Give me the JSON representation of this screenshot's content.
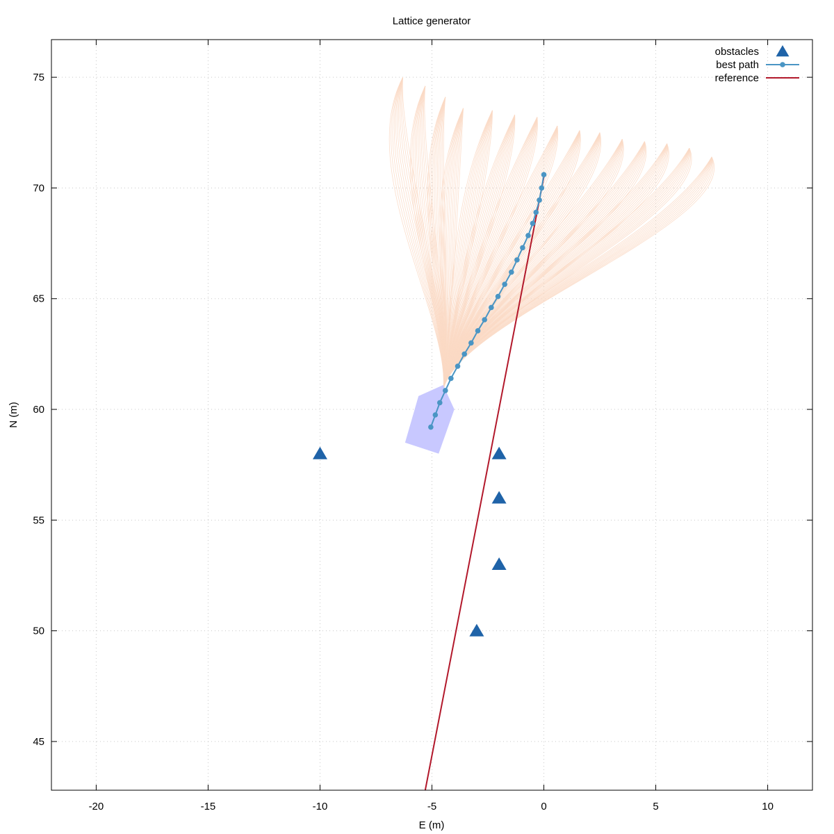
{
  "chart_data": {
    "type": "scatter",
    "title": "Lattice generator",
    "xlabel": "E (m)",
    "ylabel": "N (m)",
    "xlim": [
      -22,
      12
    ],
    "ylim": [
      42.8,
      76.7
    ],
    "x_ticks": [
      -20,
      -15,
      -10,
      -5,
      0,
      5,
      10
    ],
    "y_ticks": [
      45,
      50,
      55,
      60,
      65,
      70,
      75
    ],
    "grid": true,
    "legend_position": "top-right",
    "legend": [
      "obstacles",
      "best path",
      "reference"
    ],
    "series": [
      {
        "name": "obstacles",
        "marker": "triangle",
        "color": "#1f63a8",
        "points": [
          [
            -10,
            58
          ],
          [
            -2,
            58
          ],
          [
            -2,
            56
          ],
          [
            -2,
            53
          ],
          [
            -3,
            50
          ]
        ]
      },
      {
        "name": "best path",
        "marker": "circle",
        "color": "#4a95c4",
        "points": [
          [
            -5.05,
            59.2
          ],
          [
            -4.85,
            59.75
          ],
          [
            -4.65,
            60.3
          ],
          [
            -4.4,
            60.85
          ],
          [
            -4.15,
            61.4
          ],
          [
            -3.85,
            61.95
          ],
          [
            -3.55,
            62.5
          ],
          [
            -3.25,
            63.0
          ],
          [
            -2.95,
            63.55
          ],
          [
            -2.65,
            64.05
          ],
          [
            -2.35,
            64.6
          ],
          [
            -2.05,
            65.1
          ],
          [
            -1.75,
            65.65
          ],
          [
            -1.45,
            66.2
          ],
          [
            -1.2,
            66.75
          ],
          [
            -0.95,
            67.3
          ],
          [
            -0.7,
            67.85
          ],
          [
            -0.5,
            68.4
          ],
          [
            -0.35,
            68.9
          ],
          [
            -0.2,
            69.45
          ],
          [
            -0.1,
            70.0
          ],
          [
            0.0,
            70.6
          ]
        ]
      },
      {
        "name": "reference",
        "marker": "line",
        "color": "#b2182b",
        "points": [
          [
            -5.3,
            42.8
          ],
          [
            0.0,
            70.5
          ]
        ]
      }
    ],
    "vessel_polygon": [
      [
        -6.2,
        58.5
      ],
      [
        -5.6,
        60.6
      ],
      [
        -4.5,
        61.1
      ],
      [
        -4.0,
        60.0
      ],
      [
        -4.7,
        58.0
      ]
    ],
    "vessel_color": "#c8c8ff",
    "lattice": {
      "color": "#fbd9c4",
      "origin": [
        -4.5,
        60.8
      ],
      "endpoints": [
        [
          -6.3,
          75.0
        ],
        [
          -5.3,
          74.6
        ],
        [
          -4.4,
          74.1
        ],
        [
          -3.6,
          73.6
        ],
        [
          -2.3,
          73.5
        ],
        [
          -1.3,
          73.3
        ],
        [
          -0.3,
          73.2
        ],
        [
          0.6,
          72.8
        ],
        [
          1.6,
          72.6
        ],
        [
          2.5,
          72.5
        ],
        [
          3.5,
          72.2
        ],
        [
          4.5,
          72.1
        ],
        [
          5.5,
          72.0
        ],
        [
          6.5,
          71.8
        ],
        [
          7.5,
          71.4
        ]
      ]
    }
  }
}
